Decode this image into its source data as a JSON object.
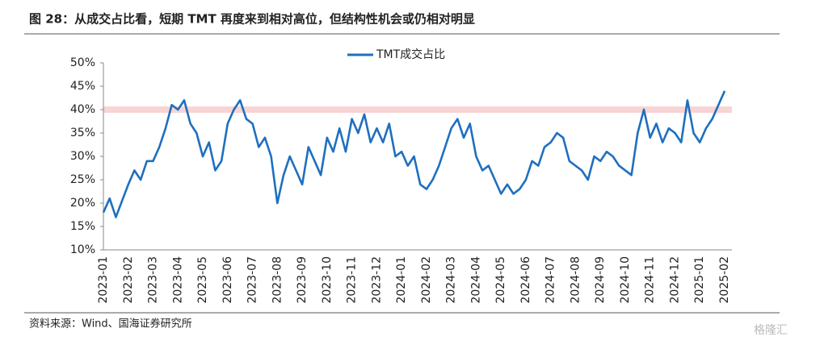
{
  "chart_data": {
    "type": "line",
    "title": "图 28：从成交占比看，短期 TMT 再度来到相对高位，但结构性机会或仍相对明显",
    "source": "资料来源：Wind、国海证券研究所",
    "watermark": "格隆汇",
    "categories": [
      "2023-01",
      null,
      null,
      null,
      "2023-02",
      null,
      null,
      null,
      "2023-03",
      null,
      null,
      null,
      "2023-04",
      null,
      null,
      null,
      "2023-05",
      null,
      null,
      null,
      "2023-06",
      null,
      null,
      null,
      "2023-07",
      null,
      null,
      null,
      "2023-08",
      null,
      null,
      null,
      "2023-09",
      null,
      null,
      null,
      "2023-10",
      null,
      null,
      null,
      "2023-11",
      null,
      null,
      null,
      "2023-12",
      null,
      null,
      null,
      "2024-01",
      null,
      null,
      null,
      "2024-02",
      null,
      null,
      null,
      "2024-03",
      null,
      null,
      null,
      "2024-04",
      null,
      null,
      null,
      "2024-05",
      null,
      null,
      null,
      "2024-06",
      null,
      null,
      null,
      "2024-07",
      null,
      null,
      null,
      "2024-08",
      null,
      null,
      null,
      "2024-09",
      null,
      null,
      null,
      "2024-10",
      null,
      null,
      null,
      "2024-11",
      null,
      null,
      null,
      "2024-12",
      null,
      null,
      null,
      "2025-01",
      null,
      null,
      null,
      "2025-02"
    ],
    "series": [
      {
        "name": "TMT成交占比",
        "color": "#1f6fbf",
        "values": [
          18,
          21,
          17,
          20.5,
          24,
          27,
          25,
          29,
          29,
          32,
          36,
          41,
          40,
          42,
          37,
          35,
          30,
          33,
          27,
          29,
          37,
          40,
          42,
          38,
          37,
          32,
          34,
          30,
          20,
          26,
          30,
          27,
          24,
          32,
          29,
          26,
          34,
          31,
          36,
          31,
          38,
          35,
          39,
          33,
          36,
          33,
          37,
          30,
          31,
          28,
          30,
          24,
          23,
          25,
          28,
          32,
          36,
          38,
          34,
          37,
          30,
          27,
          28,
          25,
          22,
          24,
          22,
          23,
          25,
          29,
          28,
          32,
          33,
          35,
          34,
          29,
          28,
          27,
          25,
          30,
          29,
          31,
          30,
          28,
          27,
          26,
          35,
          40,
          34,
          37,
          33,
          36,
          35,
          33,
          42,
          35,
          33,
          36,
          38,
          41,
          44
        ]
      }
    ],
    "reference_line": {
      "value": 40,
      "color": "#f9d4d4"
    },
    "ylim": [
      10,
      50
    ],
    "yticks": [
      {
        "value": 10,
        "label": "10%"
      },
      {
        "value": 15,
        "label": "15%"
      },
      {
        "value": 20,
        "label": "20%"
      },
      {
        "value": 25,
        "label": "25%"
      },
      {
        "value": 30,
        "label": "30%"
      },
      {
        "value": 35,
        "label": "35%"
      },
      {
        "value": 40,
        "label": "40%"
      },
      {
        "value": 45,
        "label": "45%"
      },
      {
        "value": 50,
        "label": "50%"
      }
    ],
    "grid": false,
    "legend": "top"
  }
}
